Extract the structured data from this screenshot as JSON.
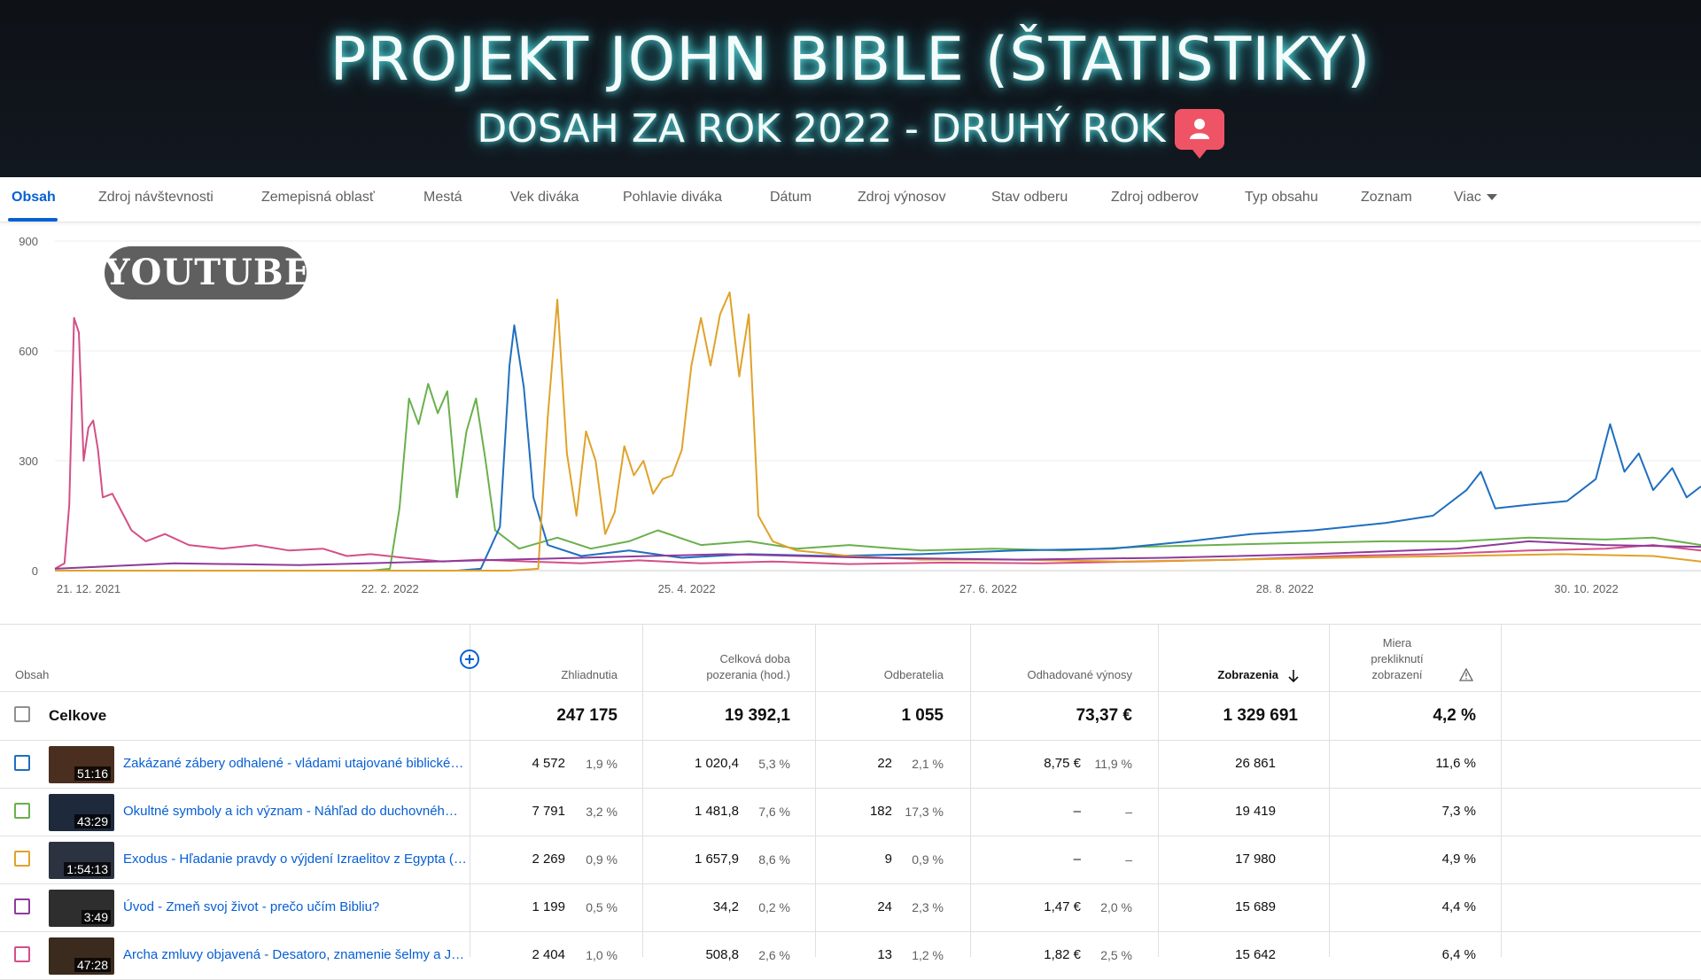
{
  "banner": {
    "title": "PROJEKT JOHN BIBLE (ŠTATISTIKY)",
    "subtitle": "DOSAH ZA ROK 2022 - DRUHÝ ROK",
    "badge_icon": "user-icon"
  },
  "tabs": [
    {
      "label": "Obsah"
    },
    {
      "label": "Zdroj návštevnosti"
    },
    {
      "label": "Zemepisná oblasť"
    },
    {
      "label": "Mestá"
    },
    {
      "label": "Vek diváka"
    },
    {
      "label": "Pohlavie diváka"
    },
    {
      "label": "Dátum"
    },
    {
      "label": "Zdroj výnosov"
    },
    {
      "label": "Stav odberu"
    },
    {
      "label": "Zdroj odberov"
    },
    {
      "label": "Typ obsahu"
    },
    {
      "label": "Zoznam"
    },
    {
      "label": "Viac"
    }
  ],
  "watermark": "YOUTUBE",
  "chart_data": {
    "type": "line",
    "ylim": [
      0,
      900
    ],
    "y_ticks": [
      "900",
      "600",
      "300",
      "0"
    ],
    "y_tick_values": [
      900,
      600,
      300,
      0
    ],
    "x_tick_labels": [
      "21. 12. 2021",
      "22. 2. 2022",
      "25. 4. 2022",
      "27. 6. 2022",
      "28. 8. 2022",
      "30. 10. 2022"
    ],
    "x_tick_dates": [
      "2021-12-21",
      "2022-02-22",
      "2022-04-25",
      "2022-06-27",
      "2022-08-28",
      "2022-10-30"
    ],
    "x_range": [
      "2021-12-21",
      "2022-11-30"
    ],
    "grid": true,
    "series": [
      {
        "color": "#d44f87",
        "points": [
          [
            "2021-12-21",
            5
          ],
          [
            "2021-12-23",
            20
          ],
          [
            "2021-12-24",
            180
          ],
          [
            "2021-12-25",
            690
          ],
          [
            "2021-12-26",
            650
          ],
          [
            "2021-12-27",
            300
          ],
          [
            "2021-12-28",
            390
          ],
          [
            "2021-12-29",
            410
          ],
          [
            "2021-12-30",
            330
          ],
          [
            "2021-12-31",
            200
          ],
          [
            "2022-01-02",
            210
          ],
          [
            "2022-01-04",
            160
          ],
          [
            "2022-01-06",
            110
          ],
          [
            "2022-01-09",
            80
          ],
          [
            "2022-01-13",
            100
          ],
          [
            "2022-01-18",
            70
          ],
          [
            "2022-01-25",
            60
          ],
          [
            "2022-02-01",
            70
          ],
          [
            "2022-02-08",
            55
          ],
          [
            "2022-02-15",
            60
          ],
          [
            "2022-02-20",
            40
          ],
          [
            "2022-02-25",
            45
          ],
          [
            "2022-03-04",
            35
          ],
          [
            "2022-03-12",
            25
          ],
          [
            "2022-03-20",
            30
          ],
          [
            "2022-03-30",
            25
          ],
          [
            "2022-04-10",
            20
          ],
          [
            "2022-04-22",
            28
          ],
          [
            "2022-05-05",
            20
          ],
          [
            "2022-05-20",
            25
          ],
          [
            "2022-06-05",
            18
          ],
          [
            "2022-06-25",
            22
          ],
          [
            "2022-07-15",
            20
          ],
          [
            "2022-08-05",
            25
          ],
          [
            "2022-08-25",
            30
          ],
          [
            "2022-09-15",
            40
          ],
          [
            "2022-10-05",
            45
          ],
          [
            "2022-10-25",
            55
          ],
          [
            "2022-11-10",
            60
          ],
          [
            "2022-11-20",
            70
          ],
          [
            "2022-11-30",
            55
          ]
        ]
      },
      {
        "color": "#6ab04c",
        "points": [
          [
            "2021-12-21",
            0
          ],
          [
            "2022-02-25",
            0
          ],
          [
            "2022-03-01",
            5
          ],
          [
            "2022-03-03",
            170
          ],
          [
            "2022-03-05",
            470
          ],
          [
            "2022-03-07",
            400
          ],
          [
            "2022-03-09",
            510
          ],
          [
            "2022-03-11",
            430
          ],
          [
            "2022-03-13",
            490
          ],
          [
            "2022-03-15",
            200
          ],
          [
            "2022-03-17",
            380
          ],
          [
            "2022-03-19",
            470
          ],
          [
            "2022-03-21",
            300
          ],
          [
            "2022-03-23",
            110
          ],
          [
            "2022-03-28",
            60
          ],
          [
            "2022-04-05",
            90
          ],
          [
            "2022-04-12",
            60
          ],
          [
            "2022-04-20",
            80
          ],
          [
            "2022-04-26",
            110
          ],
          [
            "2022-05-05",
            70
          ],
          [
            "2022-05-15",
            80
          ],
          [
            "2022-05-25",
            60
          ],
          [
            "2022-06-05",
            70
          ],
          [
            "2022-06-20",
            55
          ],
          [
            "2022-07-05",
            60
          ],
          [
            "2022-07-20",
            55
          ],
          [
            "2022-08-05",
            65
          ],
          [
            "2022-08-20",
            70
          ],
          [
            "2022-09-05",
            75
          ],
          [
            "2022-09-25",
            80
          ],
          [
            "2022-10-10",
            80
          ],
          [
            "2022-10-25",
            90
          ],
          [
            "2022-11-10",
            85
          ],
          [
            "2022-11-20",
            90
          ],
          [
            "2022-11-30",
            70
          ]
        ]
      },
      {
        "color": "#1f6fbf",
        "points": [
          [
            "2021-12-21",
            0
          ],
          [
            "2022-03-15",
            0
          ],
          [
            "2022-03-20",
            5
          ],
          [
            "2022-03-24",
            120
          ],
          [
            "2022-03-26",
            560
          ],
          [
            "2022-03-27",
            670
          ],
          [
            "2022-03-29",
            500
          ],
          [
            "2022-03-31",
            200
          ],
          [
            "2022-04-03",
            70
          ],
          [
            "2022-04-10",
            40
          ],
          [
            "2022-04-20",
            55
          ],
          [
            "2022-05-01",
            35
          ],
          [
            "2022-05-15",
            45
          ],
          [
            "2022-06-01",
            40
          ],
          [
            "2022-06-20",
            45
          ],
          [
            "2022-07-10",
            55
          ],
          [
            "2022-07-30",
            60
          ],
          [
            "2022-08-15",
            80
          ],
          [
            "2022-08-28",
            100
          ],
          [
            "2022-09-10",
            110
          ],
          [
            "2022-09-25",
            130
          ],
          [
            "2022-10-05",
            150
          ],
          [
            "2022-10-12",
            220
          ],
          [
            "2022-10-15",
            270
          ],
          [
            "2022-10-18",
            170
          ],
          [
            "2022-10-25",
            180
          ],
          [
            "2022-11-02",
            190
          ],
          [
            "2022-11-08",
            250
          ],
          [
            "2022-11-11",
            400
          ],
          [
            "2022-11-14",
            270
          ],
          [
            "2022-11-17",
            320
          ],
          [
            "2022-11-20",
            220
          ],
          [
            "2022-11-24",
            280
          ],
          [
            "2022-11-27",
            200
          ],
          [
            "2022-11-30",
            230
          ]
        ]
      },
      {
        "color": "#e0a22a",
        "points": [
          [
            "2021-12-21",
            0
          ],
          [
            "2022-03-26",
            0
          ],
          [
            "2022-04-01",
            5
          ],
          [
            "2022-04-03",
            420
          ],
          [
            "2022-04-05",
            740
          ],
          [
            "2022-04-07",
            320
          ],
          [
            "2022-04-09",
            150
          ],
          [
            "2022-04-11",
            380
          ],
          [
            "2022-04-13",
            300
          ],
          [
            "2022-04-15",
            100
          ],
          [
            "2022-04-17",
            160
          ],
          [
            "2022-04-19",
            340
          ],
          [
            "2022-04-21",
            260
          ],
          [
            "2022-04-23",
            300
          ],
          [
            "2022-04-25",
            210
          ],
          [
            "2022-04-27",
            250
          ],
          [
            "2022-04-29",
            260
          ],
          [
            "2022-05-01",
            330
          ],
          [
            "2022-05-03",
            560
          ],
          [
            "2022-05-05",
            690
          ],
          [
            "2022-05-07",
            560
          ],
          [
            "2022-05-09",
            700
          ],
          [
            "2022-05-11",
            760
          ],
          [
            "2022-05-13",
            530
          ],
          [
            "2022-05-15",
            700
          ],
          [
            "2022-05-17",
            150
          ],
          [
            "2022-05-20",
            80
          ],
          [
            "2022-05-25",
            55
          ],
          [
            "2022-06-05",
            40
          ],
          [
            "2022-06-20",
            30
          ],
          [
            "2022-07-10",
            30
          ],
          [
            "2022-08-01",
            25
          ],
          [
            "2022-08-25",
            30
          ],
          [
            "2022-09-15",
            35
          ],
          [
            "2022-10-10",
            40
          ],
          [
            "2022-11-01",
            45
          ],
          [
            "2022-11-20",
            40
          ],
          [
            "2022-11-30",
            25
          ]
        ]
      },
      {
        "color": "#8e3a9c",
        "points": [
          [
            "2021-12-21",
            5
          ],
          [
            "2022-01-15",
            20
          ],
          [
            "2022-02-10",
            15
          ],
          [
            "2022-03-10",
            25
          ],
          [
            "2022-04-10",
            35
          ],
          [
            "2022-05-10",
            45
          ],
          [
            "2022-06-10",
            35
          ],
          [
            "2022-07-10",
            30
          ],
          [
            "2022-08-10",
            35
          ],
          [
            "2022-09-10",
            45
          ],
          [
            "2022-10-10",
            60
          ],
          [
            "2022-10-25",
            80
          ],
          [
            "2022-11-10",
            70
          ],
          [
            "2022-11-30",
            65
          ]
        ]
      }
    ]
  },
  "table": {
    "header": {
      "content": "Obsah",
      "add_icon": "plus-circle-icon",
      "views": "Zhliadnutia",
      "watch_time": "Celková doba pozerania (hod.)",
      "subscribers": "Odberatelia",
      "revenue": "Odhadované výnosy",
      "impressions": "Zobrazenia",
      "sort_icon": "arrow-down-icon",
      "ctr": "Miera prekliknutí zobrazení",
      "warning_icon": "warning-icon"
    },
    "total": {
      "label": "Celkove",
      "views": "247 175",
      "watch_time": "19 392,1",
      "subscribers": "1 055",
      "revenue": "73,37 €",
      "impressions": "1 329 691",
      "ctr": "4,2 %"
    },
    "rows": [
      {
        "color": "#1f6fbf",
        "duration": "51:16",
        "title": "Zakázané zábery odhalené - vládami utajované biblické…",
        "views": "4 572",
        "views_pct": "1,9 %",
        "watch": "1 020,4",
        "watch_pct": "5,3 %",
        "subs": "22",
        "subs_pct": "2,1 %",
        "rev": "8,75 €",
        "rev_pct": "11,9 %",
        "impr": "26 861",
        "ctr": "11,6 %"
      },
      {
        "color": "#6ab04c",
        "duration": "43:29",
        "title": "Okultné symboly a ich význam - Náhľad do duchovnéh…",
        "views": "7 791",
        "views_pct": "3,2 %",
        "watch": "1 481,8",
        "watch_pct": "7,6 %",
        "subs": "182",
        "subs_pct": "17,3 %",
        "rev": "–",
        "rev_pct": "–",
        "impr": "19 419",
        "ctr": "7,3 %"
      },
      {
        "color": "#e0a22a",
        "duration": "1:54:13",
        "title": "Exodus - Hľadanie pravdy o výjdení Izraelitov z Egypta (…",
        "views": "2 269",
        "views_pct": "0,9 %",
        "watch": "1 657,9",
        "watch_pct": "8,6 %",
        "subs": "9",
        "subs_pct": "0,9 %",
        "rev": "–",
        "rev_pct": "–",
        "impr": "17 980",
        "ctr": "4,9 %"
      },
      {
        "color": "#8e3a9c",
        "duration": "3:49",
        "title": "Úvod - Zmeň svoj život - prečo učím Bibliu?",
        "views": "1 199",
        "views_pct": "0,5 %",
        "watch": "34,2",
        "watch_pct": "0,2 %",
        "subs": "24",
        "subs_pct": "2,3 %",
        "rev": "1,47 €",
        "rev_pct": "2,0 %",
        "impr": "15 689",
        "ctr": "4,4 %"
      },
      {
        "color": "#d44f87",
        "duration": "47:28",
        "title": "Archa zmluvy objavená - Desatoro, znamenie šelmy a J…",
        "views": "2 404",
        "views_pct": "1,0 %",
        "watch": "508,8",
        "watch_pct": "2,6 %",
        "subs": "13",
        "subs_pct": "1,2 %",
        "rev": "1,82 €",
        "rev_pct": "2,5 %",
        "impr": "15 642",
        "ctr": "6,4 %"
      }
    ]
  }
}
